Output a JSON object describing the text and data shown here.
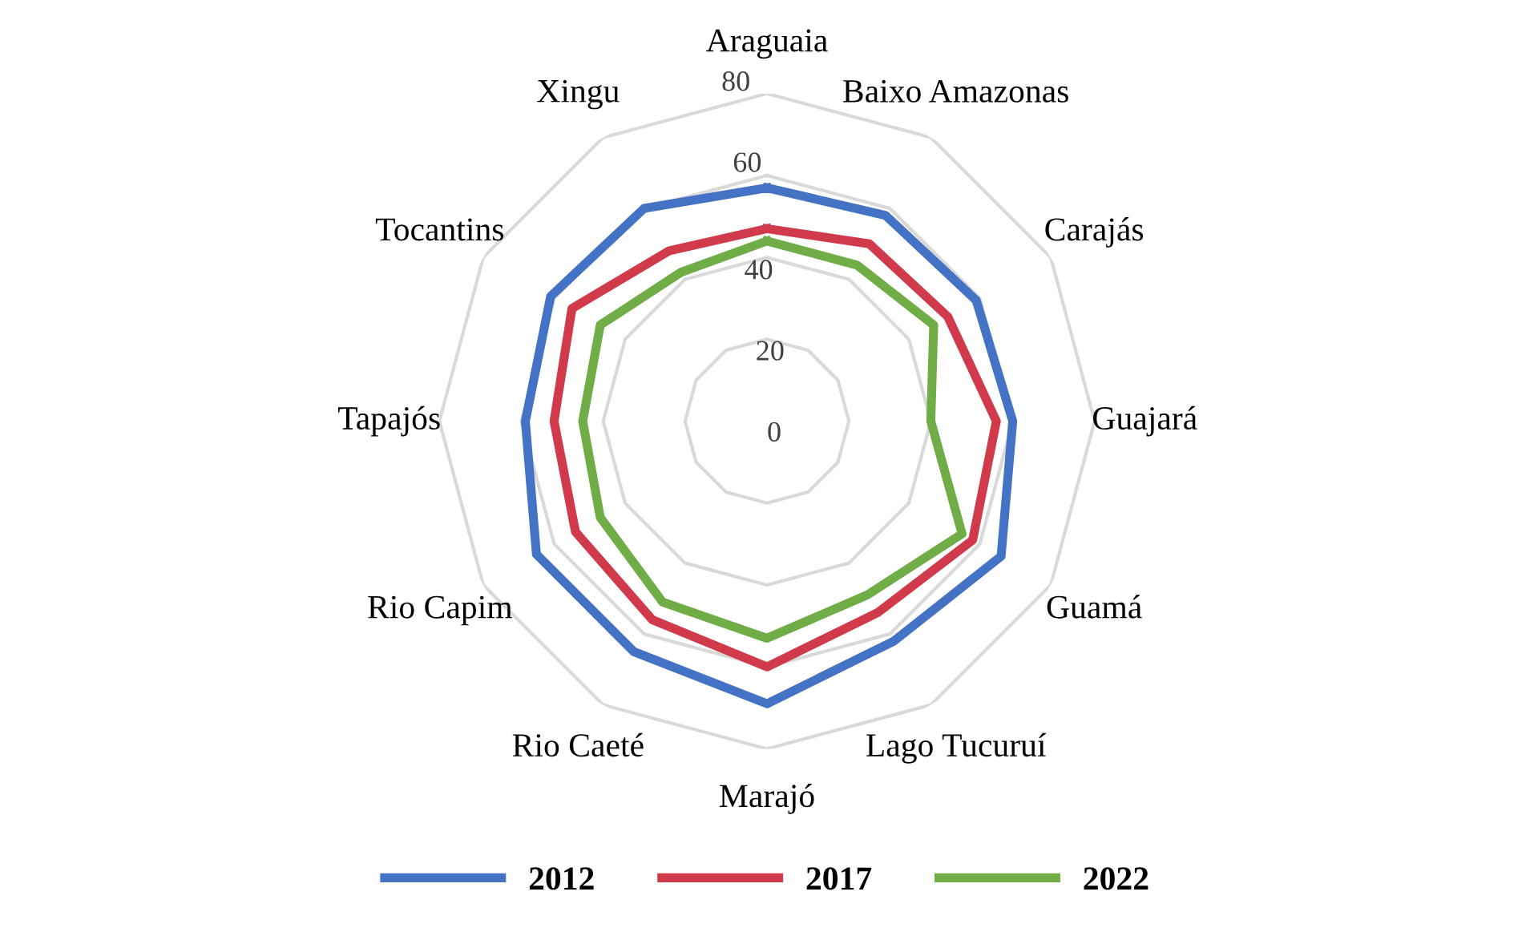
{
  "chart_data": {
    "type": "radar",
    "categories": [
      "Araguaia",
      "Baixo Amazonas",
      "Carajás",
      "Guajará",
      "Guamá",
      "Lago Tucuruí",
      "Marajó",
      "Rio Caeté",
      "Rio Capim",
      "Tapajós",
      "Tocantins",
      "Xingu"
    ],
    "series": [
      {
        "name": "2012",
        "color": "#4472c4",
        "values": [
          57,
          58,
          59,
          60,
          66,
          62,
          69,
          65,
          65,
          59,
          61,
          60
        ]
      },
      {
        "name": "2017",
        "color": "#d03a4b",
        "values": [
          47,
          50,
          51,
          56,
          58,
          54,
          60,
          56,
          54,
          52,
          55,
          48
        ]
      },
      {
        "name": "2022",
        "color": "#70ad47",
        "values": [
          44,
          44,
          47,
          40,
          55,
          49,
          53,
          51,
          47,
          45,
          47,
          42
        ]
      }
    ],
    "ylim": [
      0,
      80
    ],
    "yticks": [
      0,
      20,
      40,
      60,
      80
    ],
    "grid": true,
    "legend": "bottom",
    "marker": "none",
    "line_style": "solid"
  }
}
